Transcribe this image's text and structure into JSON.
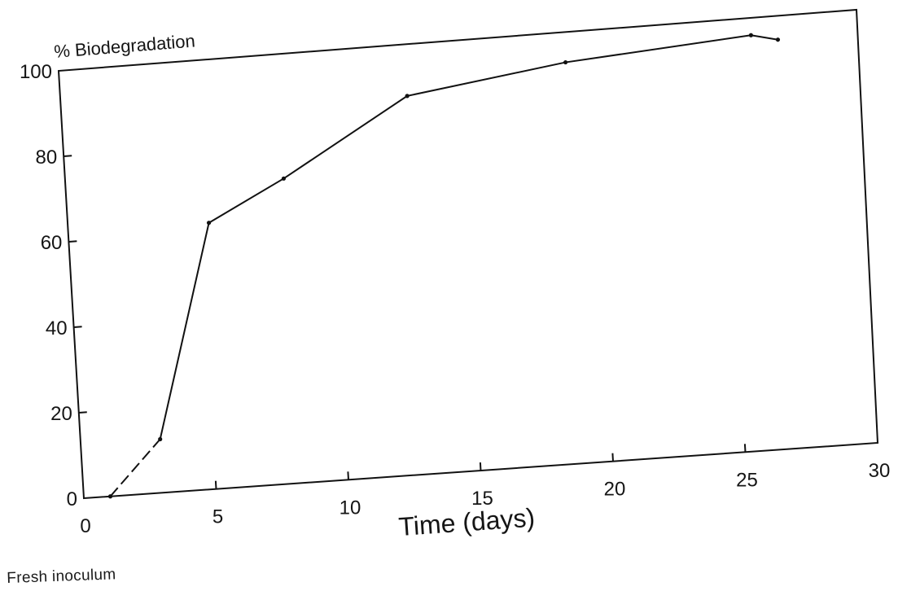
{
  "caption": "Fresh inoculum",
  "chart_data": {
    "type": "line",
    "ylabel": "% Biodegradation",
    "xlabel": "Time (days)",
    "xlim": [
      0,
      30
    ],
    "ylim": [
      0,
      100
    ],
    "xticks": [
      0,
      5,
      10,
      15,
      20,
      25,
      30
    ],
    "yticks": [
      0,
      20,
      40,
      60,
      80,
      100
    ],
    "xtick_labels": [
      "0",
      "5",
      "10",
      "15",
      "20",
      "25",
      "30"
    ],
    "ytick_labels": [
      "0",
      "20",
      "40",
      "60",
      "80",
      "100"
    ],
    "grid": false,
    "legend": "none",
    "line_color": "#111111",
    "series": [
      {
        "x": [
          1,
          3,
          5.3,
          8.2,
          13,
          19,
          26,
          27
        ],
        "y": [
          0,
          12.5,
          62,
          71,
          88,
          93,
          96,
          94.5
        ]
      }
    ]
  }
}
